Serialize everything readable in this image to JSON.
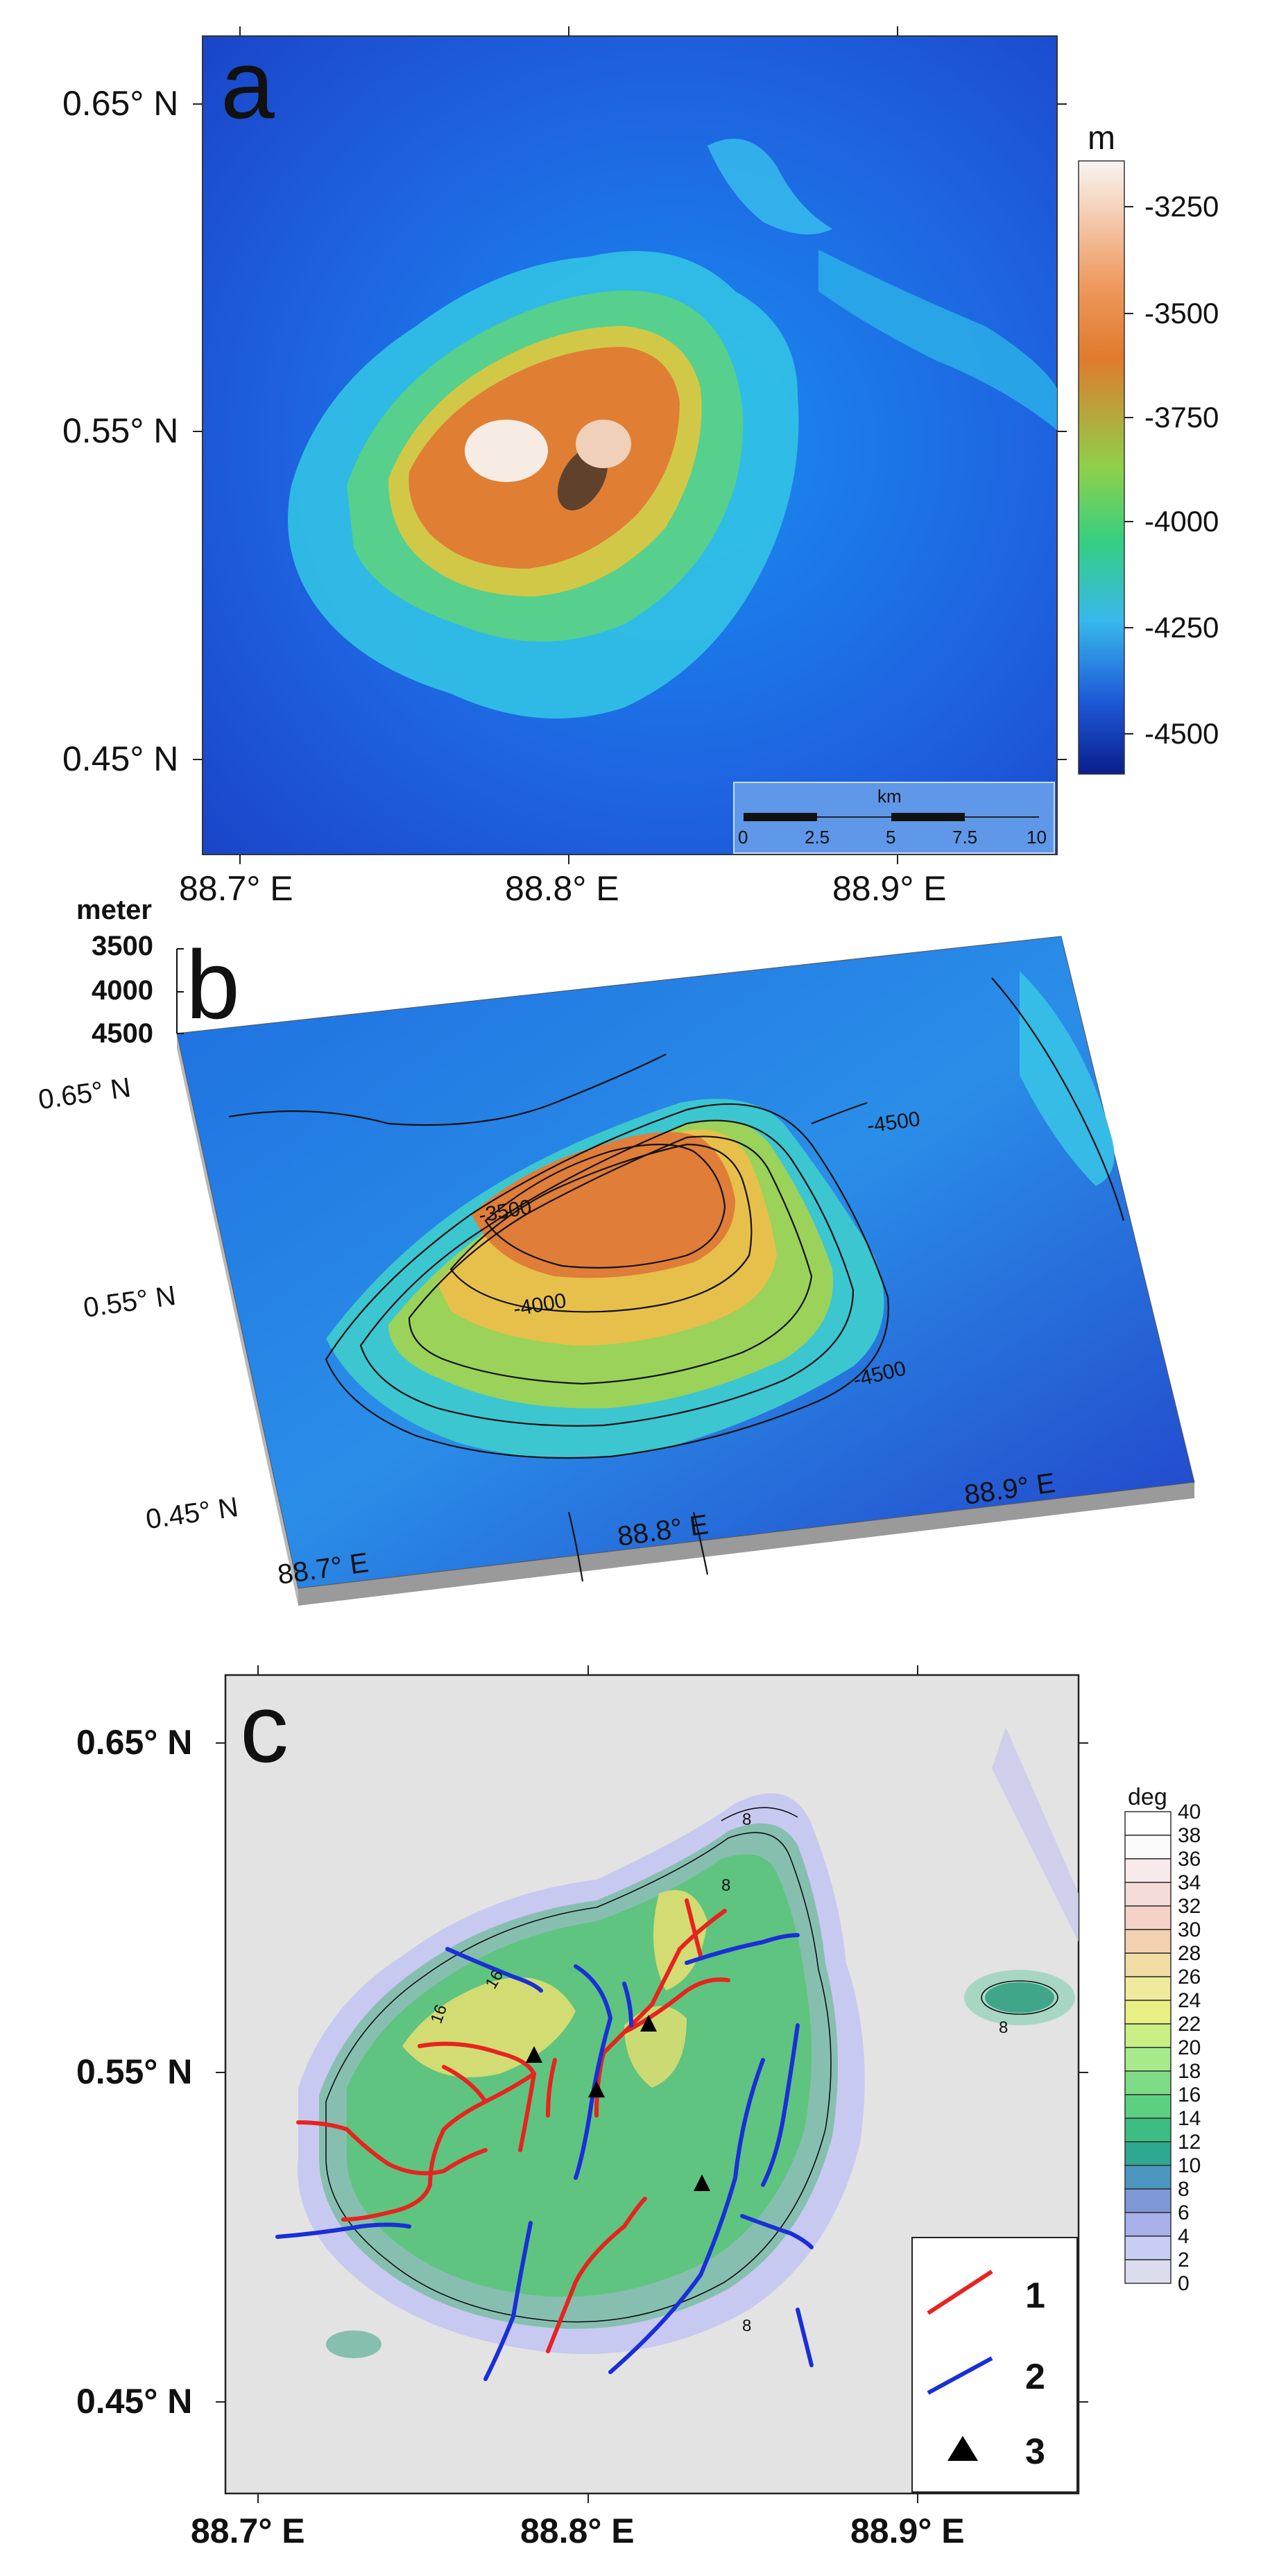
{
  "panel_a": {
    "letter": "a",
    "lat_ticks": [
      "0.65° N",
      "0.55° N",
      "0.45° N"
    ],
    "lon_ticks": [
      "88.7° E",
      "88.8° E",
      "88.9° E"
    ],
    "colorbar": {
      "unit": "m",
      "ticks": [
        "-3250",
        "-3500",
        "-3750",
        "-4000",
        "-4250",
        "-4500"
      ],
      "colors": [
        "#f8f4f2",
        "#ee8a3a",
        "#d8d23c",
        "#4fcf6e",
        "#3fb8e8",
        "#1b55d6",
        "#0a1e8c"
      ]
    },
    "scalebar": {
      "unit": "km",
      "ticks": [
        "0",
        "2.5",
        "5",
        "7.5",
        "10"
      ]
    }
  },
  "panel_b": {
    "letter": "b",
    "vertical_axis_title": "meter",
    "vertical_ticks": [
      "3500",
      "4000",
      "4500"
    ],
    "lat_ticks": [
      "0.65° N",
      "0.55° N",
      "0.45° N"
    ],
    "lon_ticks": [
      "88.7° E",
      "88.8° E",
      "88.9° E"
    ],
    "contour_labels": [
      "-4500",
      "-3500",
      "-4000",
      "-4500"
    ]
  },
  "panel_c": {
    "letter": "c",
    "lat_ticks": [
      "0.65° N",
      "0.55° N",
      "0.45° N"
    ],
    "lon_ticks": [
      "88.7° E",
      "88.8° E",
      "88.9° E"
    ],
    "colorbar": {
      "unit": "deg",
      "ticks": [
        "40",
        "38",
        "36",
        "34",
        "32",
        "30",
        "28",
        "26",
        "24",
        "22",
        "20",
        "18",
        "16",
        "14",
        "12",
        "10",
        "8",
        "6",
        "4",
        "2",
        "0"
      ]
    },
    "legend": {
      "items": [
        {
          "label": "1",
          "symbol": "red-line",
          "color": "#e8231f"
        },
        {
          "label": "2",
          "symbol": "blue-line",
          "color": "#1a2fd8"
        },
        {
          "label": "3",
          "symbol": "black-triangle",
          "color": "#000000"
        }
      ]
    },
    "contour_labels": [
      "8",
      "16",
      "16",
      "8",
      "8",
      "8"
    ]
  }
}
